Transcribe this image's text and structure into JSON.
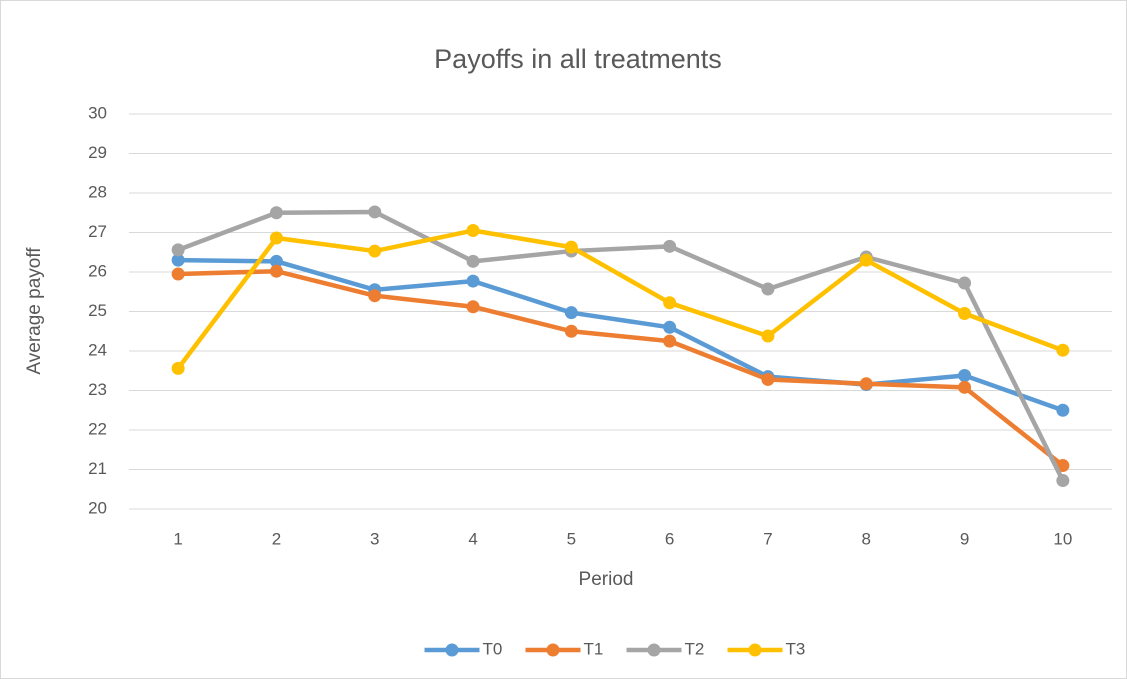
{
  "chart_data": {
    "type": "line",
    "title": "Payoffs in all treatments",
    "x_label": "Period",
    "y_label": "Average payoff",
    "categories": [
      "1",
      "2",
      "3",
      "4",
      "5",
      "6",
      "7",
      "8",
      "9",
      "10"
    ],
    "series": [
      {
        "name": "T0",
        "color": "#5b9bd5",
        "values": [
          26.3,
          26.27,
          25.55,
          25.77,
          24.97,
          24.6,
          23.35,
          23.15,
          23.38,
          22.5
        ]
      },
      {
        "name": "T1",
        "color": "#ed7d31",
        "values": [
          25.95,
          26.02,
          25.4,
          25.12,
          24.5,
          24.25,
          23.28,
          23.17,
          23.08,
          21.1
        ]
      },
      {
        "name": "T2",
        "color": "#a5a5a5",
        "values": [
          26.56,
          27.5,
          27.52,
          26.27,
          26.53,
          26.65,
          25.57,
          26.38,
          25.72,
          20.72
        ]
      },
      {
        "name": "T3",
        "color": "#ffc000",
        "values": [
          23.56,
          26.86,
          26.53,
          27.05,
          26.63,
          25.22,
          24.38,
          26.3,
          24.95,
          24.02
        ]
      }
    ],
    "ylim": [
      20,
      30
    ],
    "yticks": [
      20,
      21,
      22,
      23,
      24,
      25,
      26,
      27,
      28,
      29,
      30
    ],
    "grid": true,
    "legend": "bottom"
  }
}
